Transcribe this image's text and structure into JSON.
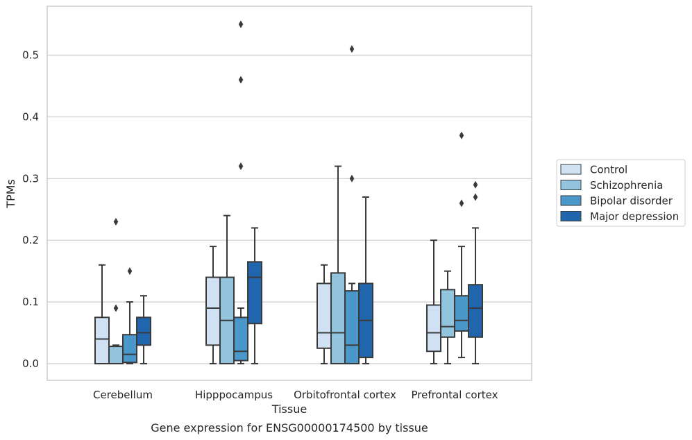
{
  "caption": "Gene expression for ENSG00000174500 by tissue",
  "chart_data": {
    "type": "box",
    "xlabel": "Tissue",
    "ylabel": "TPMs",
    "ylim": [
      -0.027,
      0.58
    ],
    "yticks": [
      0.0,
      0.1,
      0.2,
      0.3,
      0.4,
      0.5
    ],
    "ytick_labels": [
      "0.0",
      "0.1",
      "0.2",
      "0.3",
      "0.4",
      "0.5"
    ],
    "grid": "horizontal",
    "legend_position": "right",
    "categories": [
      "Cerebellum",
      "Hipppocampus",
      "Orbitofrontal cortex",
      "Prefrontal cortex"
    ],
    "series": [
      {
        "name": "Control",
        "color": "#cfe1f2",
        "boxes": [
          {
            "whislo": 0.0,
            "q1": 0.0,
            "med": 0.04,
            "q3": 0.075,
            "whishi": 0.16,
            "fliers": []
          },
          {
            "whislo": 0.0,
            "q1": 0.03,
            "med": 0.09,
            "q3": 0.14,
            "whishi": 0.19,
            "fliers": []
          },
          {
            "whislo": 0.0,
            "q1": 0.025,
            "med": 0.05,
            "q3": 0.13,
            "whishi": 0.16,
            "fliers": []
          },
          {
            "whislo": 0.0,
            "q1": 0.02,
            "med": 0.05,
            "q3": 0.095,
            "whishi": 0.2,
            "fliers": []
          }
        ]
      },
      {
        "name": "Schizophrenia",
        "color": "#93c4de",
        "boxes": [
          {
            "whislo": 0.0,
            "q1": 0.0,
            "med": 0.0,
            "q3": 0.028,
            "whishi": 0.03,
            "fliers": [
              0.09,
              0.23
            ]
          },
          {
            "whislo": 0.0,
            "q1": 0.0,
            "med": 0.07,
            "q3": 0.14,
            "whishi": 0.24,
            "fliers": []
          },
          {
            "whislo": 0.0,
            "q1": 0.0,
            "med": 0.05,
            "q3": 0.147,
            "whishi": 0.32,
            "fliers": []
          },
          {
            "whislo": 0.0,
            "q1": 0.043,
            "med": 0.06,
            "q3": 0.12,
            "whishi": 0.15,
            "fliers": []
          }
        ]
      },
      {
        "name": "Bipolar disorder",
        "color": "#4a98c9",
        "boxes": [
          {
            "whislo": 0.0,
            "q1": 0.002,
            "med": 0.015,
            "q3": 0.047,
            "whishi": 0.1,
            "fliers": [
              0.15
            ]
          },
          {
            "whislo": 0.0,
            "q1": 0.005,
            "med": 0.02,
            "q3": 0.075,
            "whishi": 0.09,
            "fliers": [
              0.32,
              0.46,
              0.55
            ]
          },
          {
            "whislo": 0.0,
            "q1": 0.0,
            "med": 0.03,
            "q3": 0.118,
            "whishi": 0.13,
            "fliers": [
              0.3,
              0.51
            ]
          },
          {
            "whislo": 0.01,
            "q1": 0.053,
            "med": 0.07,
            "q3": 0.11,
            "whishi": 0.19,
            "fliers": [
              0.26,
              0.37
            ]
          }
        ]
      },
      {
        "name": "Major depression",
        "color": "#2166ac",
        "boxes": [
          {
            "whislo": 0.0,
            "q1": 0.03,
            "med": 0.05,
            "q3": 0.075,
            "whishi": 0.11,
            "fliers": []
          },
          {
            "whislo": 0.0,
            "q1": 0.065,
            "med": 0.14,
            "q3": 0.165,
            "whishi": 0.22,
            "fliers": []
          },
          {
            "whislo": 0.0,
            "q1": 0.01,
            "med": 0.07,
            "q3": 0.13,
            "whishi": 0.27,
            "fliers": []
          },
          {
            "whislo": 0.0,
            "q1": 0.043,
            "med": 0.09,
            "q3": 0.128,
            "whishi": 0.22,
            "fliers": [
              0.27,
              0.29
            ]
          }
        ]
      }
    ]
  }
}
